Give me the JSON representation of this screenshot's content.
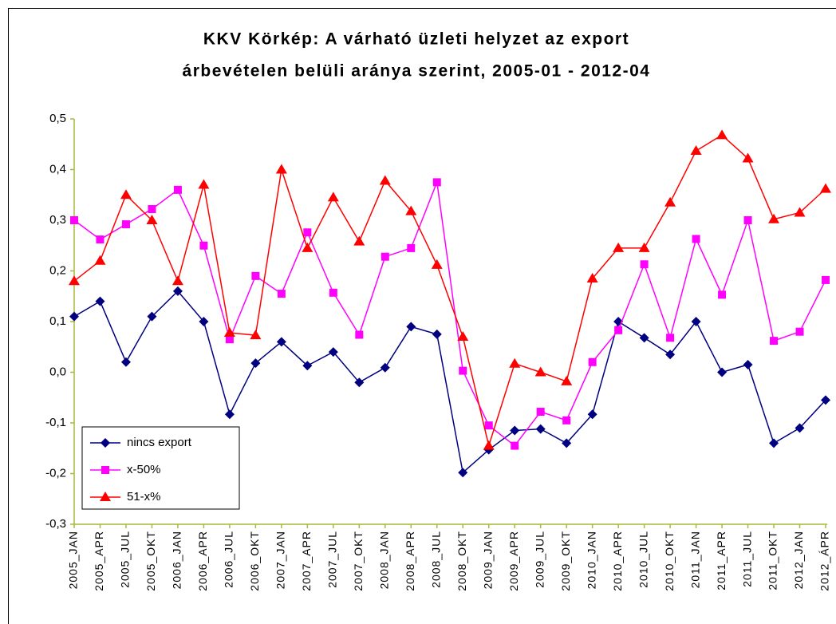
{
  "chart_data": {
    "type": "line",
    "title": [
      "KKV Körkép: A várható üzleti helyzet az export",
      "árbevételen belüli aránya szerint, 2005-01 - 2012-04"
    ],
    "categories": [
      "2005_JAN",
      "2005_APR",
      "2005_JUL",
      "2005_OKT",
      "2006_JAN",
      "2006_APR",
      "2006_JUL",
      "2006_OKT",
      "2007_JAN",
      "2007_APR",
      "2007_JUL",
      "2007_OKT",
      "2008_JAN",
      "2008_APR",
      "2008_JUL",
      "2008_OKT",
      "2009_JAN",
      "2009_APR",
      "2009_JUL",
      "2009_OKT",
      "2010_JAN",
      "2010_APR",
      "2010_JUL",
      "2010_OKT",
      "2011_JAN",
      "2011_APR",
      "2011_JUL",
      "2011_OKT",
      "2012_JAN",
      "2012_ÁPR"
    ],
    "series": [
      {
        "name": "nincs export",
        "color": "#000080",
        "marker": "diamond",
        "values": [
          0.11,
          0.14,
          0.02,
          0.11,
          0.16,
          0.1,
          -0.083,
          0.018,
          0.06,
          0.013,
          0.04,
          -0.02,
          0.009,
          0.09,
          0.075,
          -0.198,
          -0.153,
          -0.115,
          -0.112,
          -0.14,
          -0.083,
          0.1,
          0.068,
          0.035,
          0.1,
          0.0,
          0.015,
          -0.14,
          -0.11,
          -0.055
        ]
      },
      {
        "name": "x-50%",
        "color": "#ff00ff",
        "marker": "square",
        "values": [
          0.3,
          0.262,
          0.292,
          0.322,
          0.36,
          0.25,
          0.065,
          0.19,
          0.155,
          0.276,
          0.157,
          0.074,
          0.228,
          0.245,
          0.375,
          0.003,
          -0.105,
          -0.145,
          -0.078,
          -0.095,
          0.02,
          0.083,
          0.213,
          0.068,
          0.263,
          0.153,
          0.3,
          0.062,
          0.08,
          0.182
        ]
      },
      {
        "name": "51-x%",
        "color": "#ff0000",
        "marker": "triangle",
        "values": [
          0.18,
          0.22,
          0.35,
          0.3,
          0.18,
          0.37,
          0.078,
          0.073,
          0.4,
          0.245,
          0.345,
          0.258,
          0.378,
          0.318,
          0.212,
          0.07,
          -0.145,
          0.017,
          0.0,
          -0.018,
          0.185,
          0.245,
          0.245,
          0.335,
          0.437,
          0.468,
          0.422,
          0.302,
          0.315,
          0.362
        ]
      }
    ],
    "ylim": [
      -0.3,
      0.5
    ],
    "yticks": [
      {
        "value": 0.5,
        "label": "0,5"
      },
      {
        "value": 0.4,
        "label": "0,4"
      },
      {
        "value": 0.3,
        "label": "0,3"
      },
      {
        "value": 0.2,
        "label": "0,2"
      },
      {
        "value": 0.1,
        "label": "0,1"
      },
      {
        "value": 0,
        "label": "0,0"
      },
      {
        "value": -0.1,
        "label": "-0,1"
      },
      {
        "value": -0.2,
        "label": "-0,2"
      },
      {
        "value": -0.3,
        "label": "-0,3"
      }
    ],
    "grid": false,
    "legend": "lower left"
  }
}
